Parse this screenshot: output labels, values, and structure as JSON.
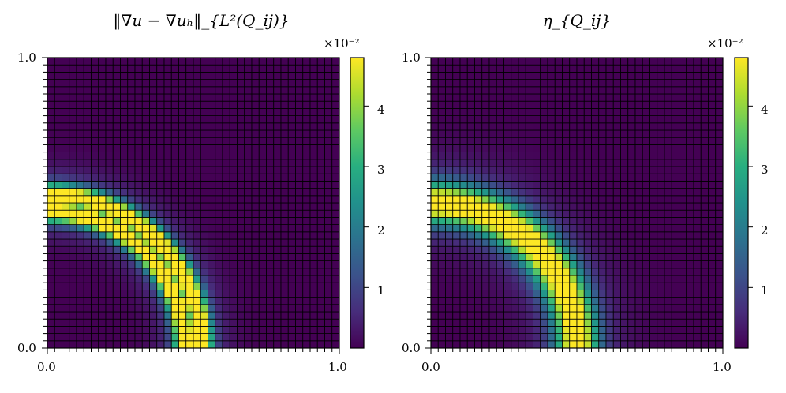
{
  "chart_data": [
    {
      "type": "heatmap",
      "title": "‖∇u − ∇uₕ‖_{L²(Q_ij)}",
      "xlim": [
        0.0,
        1.0
      ],
      "ylim": [
        0.0,
        1.0
      ],
      "x_tick_labels": [
        "0.0",
        "1.0"
      ],
      "y_tick_labels": [
        "0.0",
        "1.0"
      ],
      "grid_cells": [
        40,
        40
      ],
      "colormap": "viridis",
      "colorbar": {
        "multiplier": "×10⁻²",
        "range": [
          0.0,
          4.8
        ],
        "ticks": [
          1,
          2,
          3,
          4
        ],
        "tick_labels": [
          "1",
          "2",
          "3",
          "4"
        ]
      },
      "pattern": "two thin bright quarter-circle arcs centered at the origin, radii ≈ 0.47 and ≈ 0.53, peak ≈ 4.8e-2, near zero elsewhere",
      "field": {
        "kind": "double-ring",
        "r1": 0.47,
        "r2": 0.53,
        "width": 0.035,
        "peak": 4.8
      }
    },
    {
      "type": "heatmap",
      "title": "η_{Q_ij}",
      "xlim": [
        0.0,
        1.0
      ],
      "ylim": [
        0.0,
        1.0
      ],
      "x_tick_labels": [
        "0.0",
        "1.0"
      ],
      "y_tick_labels": [
        "0.0",
        "1.0"
      ],
      "grid_cells": [
        40,
        40
      ],
      "colormap": "viridis",
      "colorbar": {
        "multiplier": "×10⁻²",
        "range": [
          0.0,
          4.8
        ],
        "ticks": [
          1,
          2,
          3,
          4
        ],
        "tick_labels": [
          "1",
          "2",
          "3",
          "4"
        ]
      },
      "pattern": "single broader bright quarter-circle band centered at the origin, radius ≈ 0.5, peak ≈ 4.8e-2, near zero elsewhere",
      "field": {
        "kind": "single-ring",
        "r": 0.5,
        "width": 0.07,
        "peak": 4.8
      }
    }
  ]
}
